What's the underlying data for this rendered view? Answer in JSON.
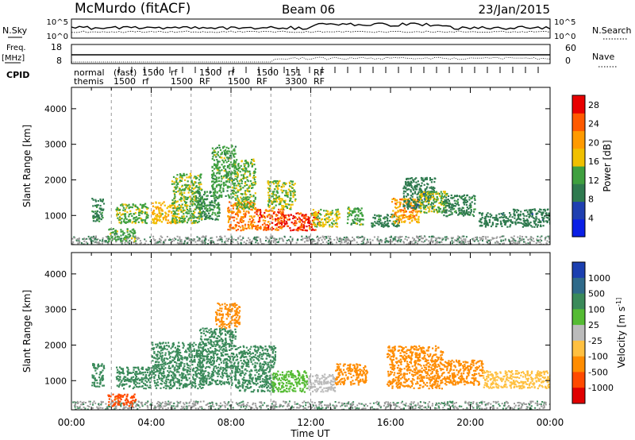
{
  "header": {
    "station": "McMurdo (fitACF)",
    "beam": "Beam 06",
    "date": "23/Jan/2015"
  },
  "summary_panel": {
    "nsky_label": "N.Sky",
    "nsky_ticks": [
      "10^5",
      "10^0"
    ],
    "nsearch_label": "N.Search",
    "nsearch_ticks": [
      "10^5",
      "10^0"
    ],
    "freq_label": "Freq.",
    "freq_unit": "[MHz]",
    "freq_ticks": [
      "18",
      "8"
    ],
    "nave_label": "Nave",
    "nave_ticks": [
      "60",
      "0"
    ],
    "cpid_label": "CPID",
    "cpid_names": [
      "normal",
      "themis"
    ],
    "cpid_events": [
      {
        "top": "(fast)",
        "bottom": "1500"
      },
      {
        "top": "1500",
        "bottom": "rf"
      },
      {
        "top": "rf",
        "bottom": "1500"
      },
      {
        "top": "1500",
        "bottom": "RF"
      },
      {
        "top": "rf",
        "bottom": "1500"
      },
      {
        "top": "1500",
        "bottom": "RF"
      },
      {
        "top": "151",
        "bottom": "3300"
      },
      {
        "top": "RF",
        "bottom": "RF"
      }
    ]
  },
  "colors": {
    "power_scale": [
      "#0a1fe6",
      "#1f3fb0",
      "#2f7a4f",
      "#3fa03f",
      "#f0c000",
      "#ff9a00",
      "#ff5a00",
      "#e80000"
    ],
    "velocity_scale": [
      "#1b3fb0",
      "#2f6a8a",
      "#3a8a5a",
      "#55bb33",
      "#bbbbbb",
      "#ffc040",
      "#ff8c00",
      "#ff4a00",
      "#e00000"
    ],
    "ground_scatter": "#9a9a9a"
  },
  "chart_data": [
    {
      "type": "heatmap",
      "name": "power",
      "xlabel": "",
      "ylabel": "Slant Range [km]",
      "x_range_hours": [
        0,
        24
      ],
      "ylim": [
        180,
        4600
      ],
      "y_ticks": [
        1000,
        2000,
        3000,
        4000
      ],
      "x_tick_labels": [
        "00:00",
        "04:00",
        "08:00",
        "12:00",
        "16:00",
        "20:00",
        "00:00"
      ],
      "colorbar": {
        "label": "Power [dB]",
        "ticks": [
          4,
          8,
          12,
          16,
          20,
          24,
          28
        ],
        "range": [
          0,
          30
        ]
      },
      "regions": [
        {
          "t": [
            1.0,
            1.6
          ],
          "r": [
            850,
            1500
          ],
          "v": 10
        },
        {
          "t": [
            1.8,
            3.2
          ],
          "r": [
            300,
            650
          ],
          "v": 13
        },
        {
          "t": [
            2.2,
            3.8
          ],
          "r": [
            800,
            1350
          ],
          "v": 14
        },
        {
          "t": [
            4.0,
            5.2
          ],
          "r": [
            800,
            1400
          ],
          "v": 18
        },
        {
          "t": [
            5.0,
            6.5
          ],
          "r": [
            800,
            2200
          ],
          "v": 14
        },
        {
          "t": [
            6.2,
            7.4
          ],
          "r": [
            900,
            1700
          ],
          "v": 11
        },
        {
          "t": [
            7.0,
            8.2
          ],
          "r": [
            1500,
            3000
          ],
          "v": 13
        },
        {
          "t": [
            7.8,
            9.2
          ],
          "r": [
            600,
            1400
          ],
          "v": 22
        },
        {
          "t": [
            8.2,
            9.2
          ],
          "r": [
            1200,
            2600
          ],
          "v": 14
        },
        {
          "t": [
            9.2,
            10.6
          ],
          "r": [
            600,
            1200
          ],
          "v": 24
        },
        {
          "t": [
            9.8,
            11.2
          ],
          "r": [
            1200,
            2000
          ],
          "v": 15
        },
        {
          "t": [
            10.6,
            12.4
          ],
          "r": [
            600,
            1100
          ],
          "v": 26
        },
        {
          "t": [
            12.0,
            13.4
          ],
          "r": [
            700,
            1200
          ],
          "v": 16
        },
        {
          "t": [
            13.8,
            14.6
          ],
          "r": [
            750,
            1250
          ],
          "v": 13
        },
        {
          "t": [
            15.0,
            16.4
          ],
          "r": [
            700,
            1050
          ],
          "v": 10
        },
        {
          "t": [
            16.0,
            17.4
          ],
          "r": [
            800,
            1500
          ],
          "v": 20
        },
        {
          "t": [
            16.6,
            18.2
          ],
          "r": [
            1200,
            2100
          ],
          "v": 9
        },
        {
          "t": [
            17.4,
            18.8
          ],
          "r": [
            1100,
            1700
          ],
          "v": 15
        },
        {
          "t": [
            18.6,
            20.2
          ],
          "r": [
            1000,
            1600
          ],
          "v": 10
        },
        {
          "t": [
            20.4,
            22.0
          ],
          "r": [
            700,
            1100
          ],
          "v": 9
        },
        {
          "t": [
            22.0,
            24.0
          ],
          "r": [
            700,
            1200
          ],
          "v": 9
        }
      ]
    },
    {
      "type": "heatmap",
      "name": "velocity",
      "xlabel": "Time UT",
      "ylabel": "Slant Range [km]",
      "x_range_hours": [
        0,
        24
      ],
      "ylim": [
        180,
        4600
      ],
      "y_ticks": [
        1000,
        2000,
        3000,
        4000
      ],
      "x_tick_labels": [
        "00:00",
        "04:00",
        "08:00",
        "12:00",
        "16:00",
        "20:00",
        "00:00"
      ],
      "colorbar": {
        "label": "Velocity [m s^-1]",
        "ticks": [
          "1000",
          "500",
          "100",
          "25",
          "-25",
          "-100",
          "-500",
          "-1000"
        ]
      },
      "regions": [
        {
          "t": [
            1.0,
            1.6
          ],
          "r": [
            850,
            1500
          ],
          "v": 150
        },
        {
          "t": [
            1.8,
            3.2
          ],
          "r": [
            300,
            650
          ],
          "v": -600
        },
        {
          "t": [
            2.2,
            4.0
          ],
          "r": [
            800,
            1400
          ],
          "v": 200
        },
        {
          "t": [
            4.0,
            6.6
          ],
          "r": [
            800,
            2100
          ],
          "v": 250
        },
        {
          "t": [
            6.4,
            8.2
          ],
          "r": [
            900,
            2500
          ],
          "v": 300
        },
        {
          "t": [
            7.2,
            8.4
          ],
          "r": [
            2500,
            3200
          ],
          "v": -150
        },
        {
          "t": [
            8.2,
            10.2
          ],
          "r": [
            700,
            2000
          ],
          "v": 250
        },
        {
          "t": [
            10.0,
            11.8
          ],
          "r": [
            700,
            1300
          ],
          "v": 50
        },
        {
          "t": [
            11.8,
            13.2
          ],
          "r": [
            700,
            1200
          ],
          "v": -20
        },
        {
          "t": [
            13.2,
            14.8
          ],
          "r": [
            900,
            1500
          ],
          "v": -200
        },
        {
          "t": [
            15.8,
            18.6
          ],
          "r": [
            800,
            2000
          ],
          "v": -300
        },
        {
          "t": [
            18.6,
            20.6
          ],
          "r": [
            900,
            1600
          ],
          "v": -150
        },
        {
          "t": [
            20.6,
            24.0
          ],
          "r": [
            800,
            1300
          ],
          "v": -60
        }
      ]
    }
  ]
}
